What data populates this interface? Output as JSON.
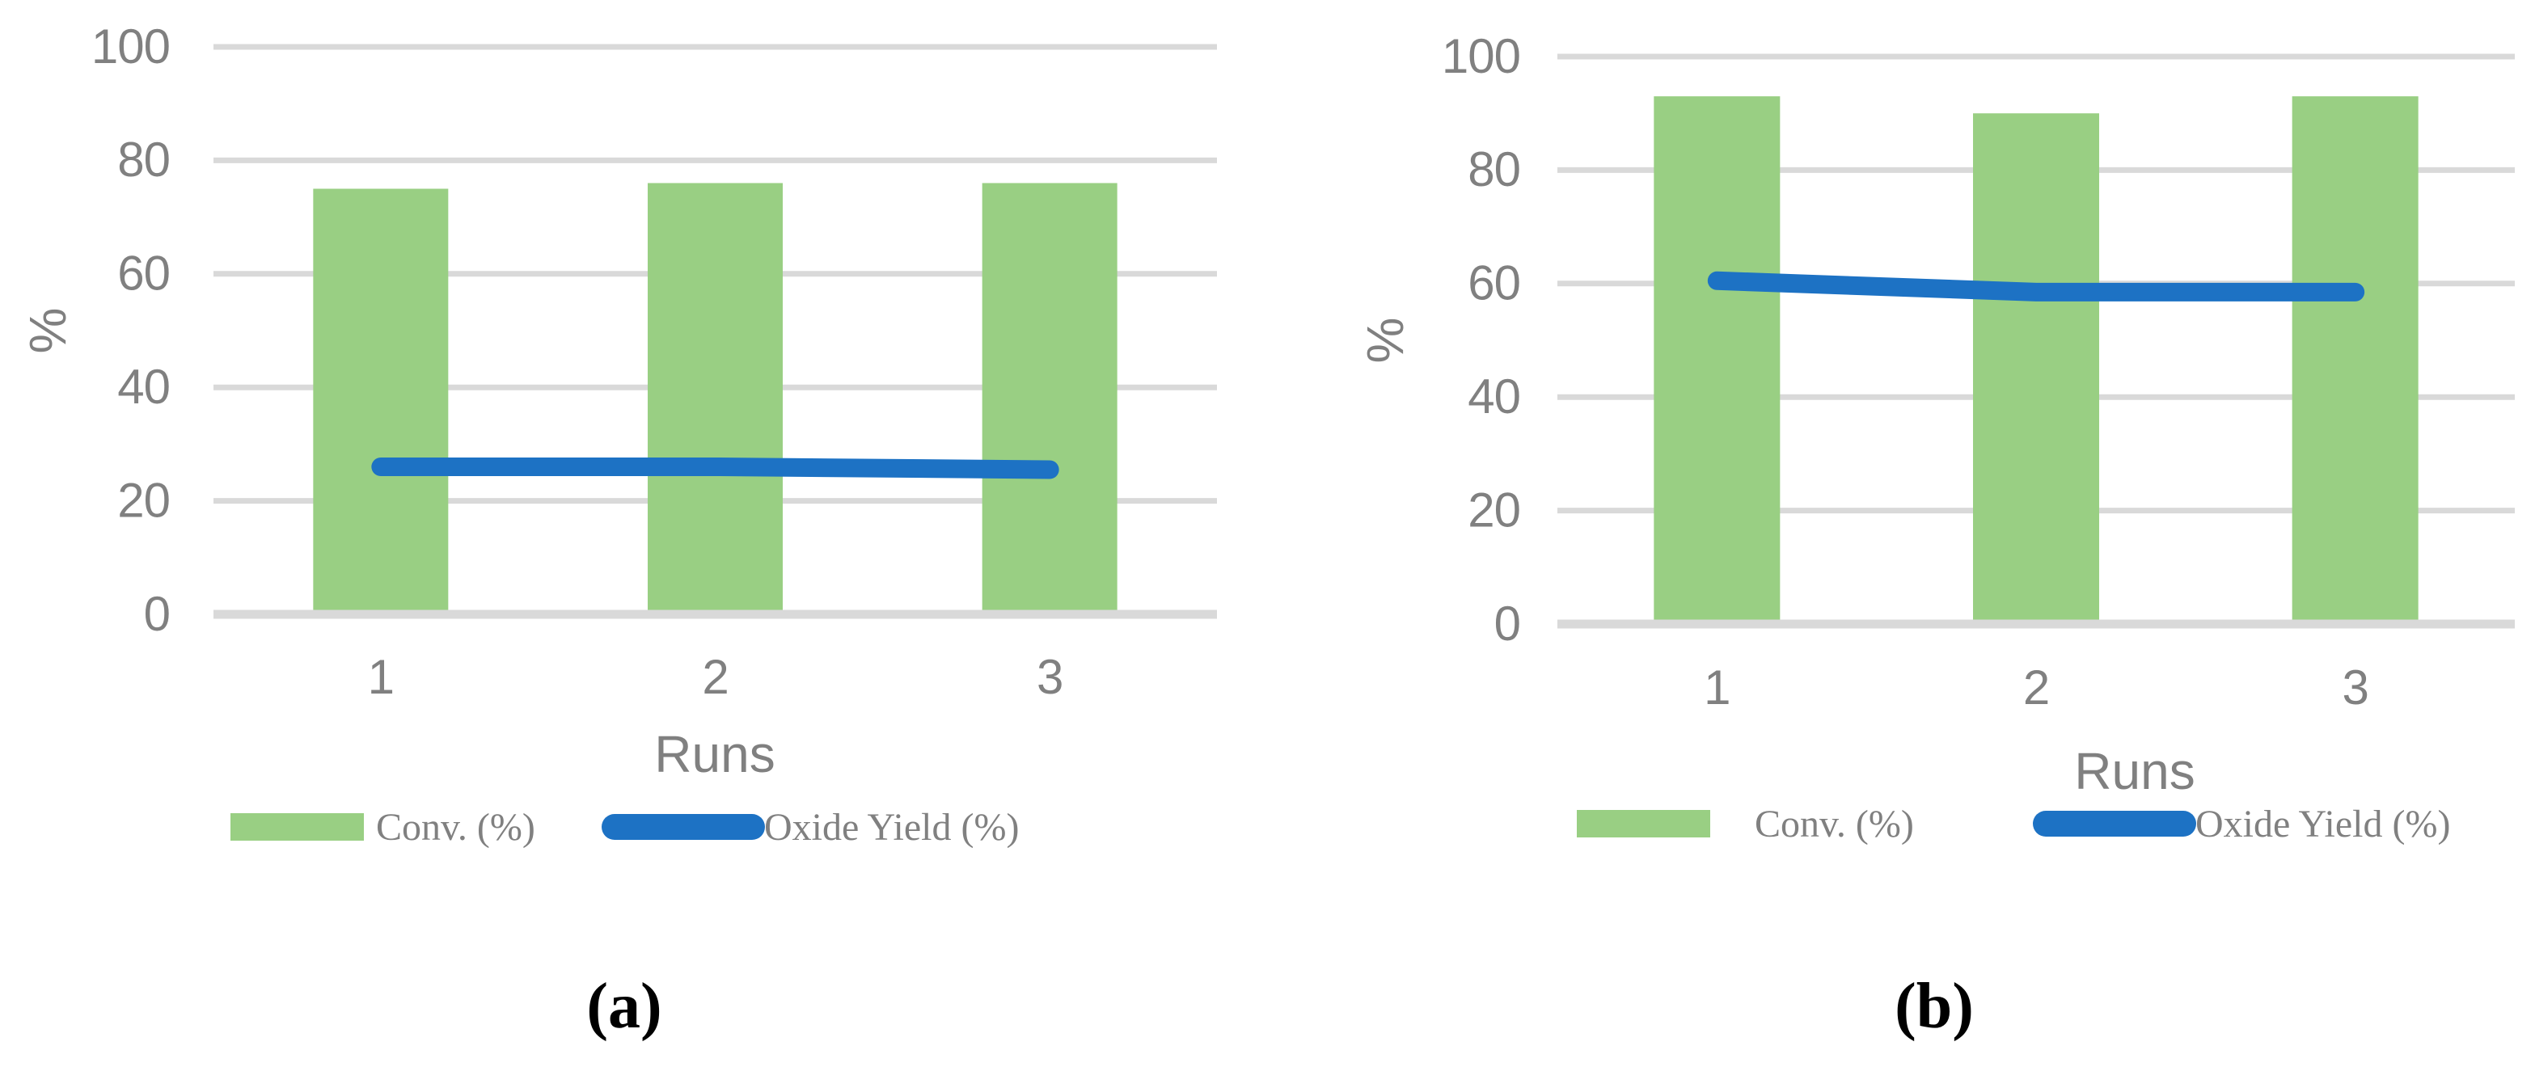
{
  "figure": {
    "captions": [
      {
        "label": "(a)"
      },
      {
        "label": "(b)"
      }
    ]
  },
  "colors": {
    "bar_fill": "#99CF83",
    "line_stroke": "#1D72C4",
    "gridline": "#D9D9D9",
    "axis_text": "#808080",
    "caption_text": "#000000",
    "background": "#FFFFFF"
  },
  "chart_data": [
    {
      "id": "a",
      "type": "bar",
      "combo": [
        "bar",
        "line"
      ],
      "title": "",
      "categories": [
        "1",
        "2",
        "3"
      ],
      "series": [
        {
          "name": "Conv. (%)",
          "type": "bar",
          "values": [
            75,
            76,
            76
          ]
        },
        {
          "name": "Oxide Yield (%)",
          "type": "line",
          "values": [
            26,
            26,
            25.5
          ]
        }
      ],
      "xlabel": "Runs",
      "ylabel": "%",
      "ylim": [
        0,
        100
      ],
      "yticks": [
        0,
        20,
        40,
        60,
        80,
        100
      ],
      "grid": true,
      "legend_position": "bottom"
    },
    {
      "id": "b",
      "type": "bar",
      "combo": [
        "bar",
        "line"
      ],
      "title": "",
      "categories": [
        "1",
        "2",
        "3"
      ],
      "series": [
        {
          "name": "Conv. (%)",
          "type": "bar",
          "values": [
            93,
            90,
            93
          ]
        },
        {
          "name": "Oxide Yield (%)",
          "type": "line",
          "values": [
            60.5,
            58.5,
            58.5
          ]
        }
      ],
      "xlabel": "Runs",
      "ylabel": "%",
      "ylim": [
        0,
        100
      ],
      "yticks": [
        0,
        20,
        40,
        60,
        80,
        100
      ],
      "grid": true,
      "legend_position": "bottom"
    }
  ]
}
